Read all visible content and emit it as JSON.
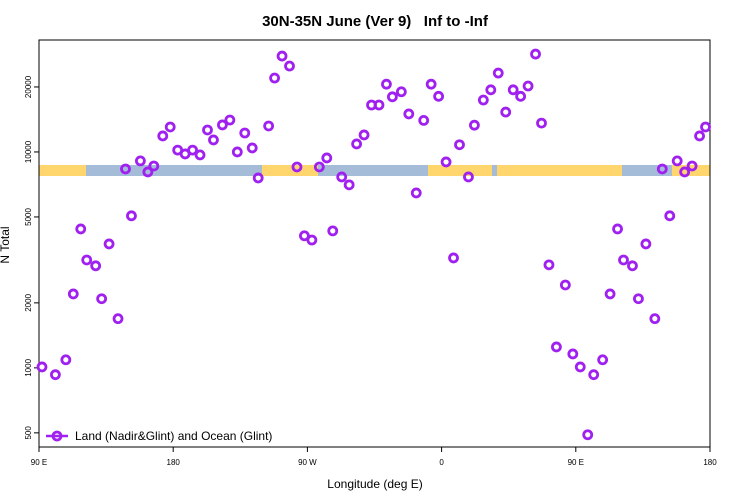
{
  "chart_data": {
    "type": "scatter",
    "title": "30N-35N June (Ver 9)   Inf to -Inf",
    "x_label": "Longitude (deg E)",
    "y_label": "N Total",
    "log_y": true,
    "legend": "bottom-left",
    "x": [
      92,
      101,
      108,
      113,
      118,
      122,
      128,
      132,
      137,
      143,
      148,
      152,
      158,
      163,
      167,
      173,
      178,
      183,
      188,
      193,
      198,
      203,
      207,
      213,
      218,
      223,
      228,
      233,
      237,
      244,
      248,
      253,
      258,
      263,
      268,
      273,
      278,
      283,
      287,
      293,
      298,
      303,
      308,
      313,
      318,
      323,
      327,
      333,
      338,
      343,
      348,
      353,
      358,
      363,
      368,
      372,
      378,
      382,
      388,
      393,
      398,
      403,
      408,
      413,
      418,
      423,
      427,
      432,
      437,
      443,
      448,
      453,
      458,
      462,
      468,
      473,
      478,
      482,
      488,
      492,
      497,
      503,
      508,
      513,
      518,
      523,
      528,
      533,
      537
    ],
    "series": [
      {
        "name": "Land (Nadir&Glint) and Ocean (Glint)",
        "color": "#a020f0",
        "values": [
          1010,
          930,
          1090,
          2200,
          4400,
          3160,
          2970,
          2090,
          3750,
          1690,
          8340,
          5060,
          9090,
          8080,
          8610,
          11860,
          13050,
          10200,
          9790,
          10200,
          9690,
          12640,
          11370,
          13340,
          14060,
          10000,
          12240,
          10440,
          7580,
          13190,
          22000,
          27800,
          25000,
          8520,
          4090,
          3910,
          8520,
          9380,
          4310,
          7660,
          7040,
          10890,
          11990,
          16500,
          16500,
          20600,
          18000,
          19000,
          15000,
          6460,
          14000,
          20600,
          18100,
          8990,
          3230,
          10800,
          7660,
          13300,
          17400,
          19400,
          23200,
          15300,
          19400,
          18100,
          20200,
          28400,
          13600,
          3000,
          1250,
          2420,
          1160,
          1010,
          490,
          930,
          1090,
          2200,
          4400,
          3160,
          2970,
          2090,
          3750,
          1690,
          8340,
          5060,
          9090,
          8080,
          8610,
          11860,
          13050
        ]
      }
    ],
    "xlim": [
      90,
      540
    ],
    "xticks": [
      {
        "value": 90,
        "label": "90 E"
      },
      180,
      {
        "value": 270,
        "label": "90 W"
      },
      {
        "value": 360,
        "label": "0"
      },
      {
        "value": 450,
        "label": "90 E"
      },
      {
        "value": 540,
        "label": "180"
      }
    ],
    "ylim": [
      430,
      33000
    ],
    "yticks": [
      500,
      1000,
      2000,
      5000,
      10000,
      20000
    ]
  }
}
